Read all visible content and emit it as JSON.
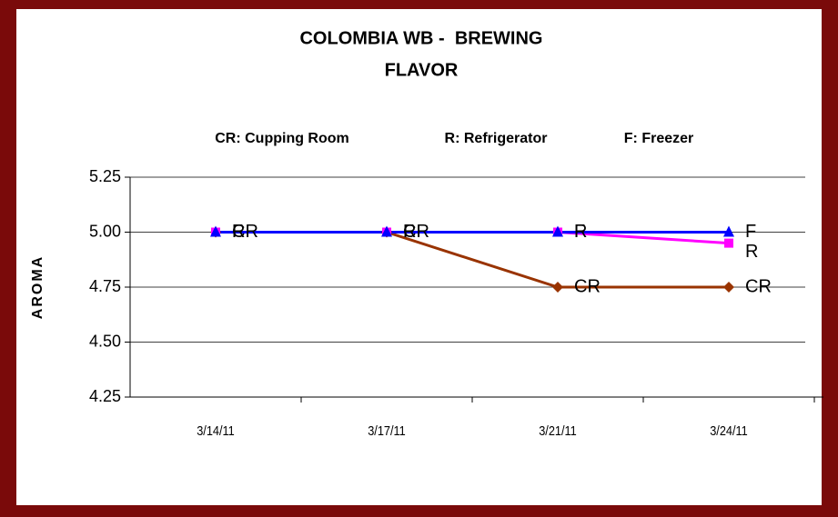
{
  "chart_data": {
    "type": "line",
    "title": [
      "COLOMBIA WB -  BREWING",
      "FLAVOR"
    ],
    "annotations": [
      "CR: Cupping Room",
      "R: Refrigerator",
      "F: Freezer"
    ],
    "y_label": "AROMA",
    "categories": [
      "3/14/11",
      "3/17/11",
      "3/21/11",
      "3/24/11"
    ],
    "series": [
      {
        "name": "CR",
        "color": "#993300",
        "marker": "diamond",
        "values": [
          5,
          5,
          4.75,
          4.75
        ]
      },
      {
        "name": "R",
        "color": "#ff00ff",
        "marker": "square",
        "values": [
          5,
          5,
          5,
          4.95
        ]
      },
      {
        "name": "F",
        "color": "#0000ff",
        "marker": "triangle",
        "values": [
          5,
          5,
          5,
          5
        ]
      }
    ],
    "ylim": [
      4.25,
      5.25
    ],
    "yticks": [
      {
        "value": 4.25,
        "label": "4.25"
      },
      {
        "value": 4.5,
        "label": "4.50"
      },
      {
        "value": 4.75,
        "label": "4.75"
      },
      {
        "value": 5,
        "label": "5.00"
      },
      {
        "value": 5.25,
        "label": "5.25"
      }
    ],
    "grid": true
  }
}
